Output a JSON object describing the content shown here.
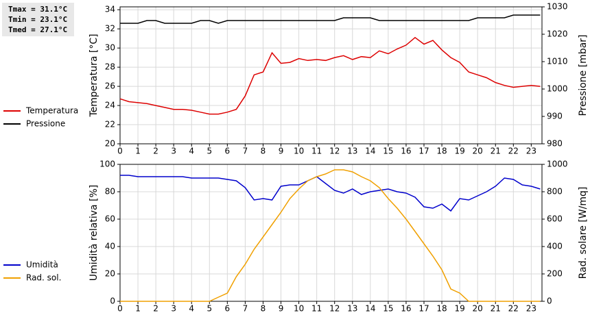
{
  "chart_data": [
    {
      "type": "line",
      "annotations": [
        "Tmax = 31.1°C",
        "Tmin = 23.1°C",
        "Tmed = 27.1°C"
      ],
      "ylabel": "Temperatura [°C]",
      "y2label": "Pressione [mbar]",
      "x": [
        0,
        0.5,
        1,
        1.5,
        2,
        2.5,
        3,
        3.5,
        4,
        4.5,
        5,
        5.5,
        6,
        6.5,
        7,
        7.5,
        8,
        8.5,
        9,
        9.5,
        10,
        10.5,
        11,
        11.5,
        12,
        12.5,
        13,
        13.5,
        14,
        14.5,
        15,
        15.5,
        16,
        16.5,
        17,
        17.5,
        18,
        18.5,
        19,
        19.5,
        20,
        20.5,
        21,
        21.5,
        22,
        22.5,
        23,
        23.5
      ],
      "xlim": [
        0,
        23.6
      ],
      "xticks": [
        0,
        1,
        2,
        3,
        4,
        5,
        6,
        7,
        8,
        9,
        10,
        11,
        12,
        13,
        14,
        15,
        16,
        17,
        18,
        19,
        20,
        21,
        22,
        23
      ],
      "ylim": [
        20,
        34.3
      ],
      "yticks": [
        20,
        22,
        24,
        26,
        28,
        30,
        32,
        34
      ],
      "y2lim": [
        980,
        1030
      ],
      "y2ticks": [
        980,
        990,
        1000,
        1010,
        1020,
        1030
      ],
      "grid": true,
      "legend": "left",
      "series": [
        {
          "name": "Temperatura",
          "color": "#dd0000",
          "values": [
            24.7,
            24.4,
            24.3,
            24.2,
            24.0,
            23.8,
            23.6,
            23.6,
            23.5,
            23.3,
            23.1,
            23.1,
            23.3,
            23.6,
            25.0,
            27.2,
            27.5,
            29.5,
            28.4,
            28.5,
            28.9,
            28.7,
            28.8,
            28.7,
            29.0,
            29.2,
            28.8,
            29.1,
            29.0,
            29.7,
            29.4,
            29.9,
            30.3,
            31.1,
            30.4,
            30.8,
            29.8,
            29.0,
            28.5,
            27.5,
            27.2,
            26.9,
            26.4,
            26.1,
            25.9,
            26.0,
            26.1,
            26.0
          ]
        },
        {
          "name": "Pressione",
          "color": "#000000",
          "axis": "y2",
          "values": [
            1024,
            1024,
            1024,
            1025,
            1025,
            1024,
            1024,
            1024,
            1024,
            1025,
            1025,
            1024,
            1025,
            1025,
            1025,
            1025,
            1025,
            1025,
            1025,
            1025,
            1025,
            1025,
            1025,
            1025,
            1025,
            1026,
            1026,
            1026,
            1026,
            1025,
            1025,
            1025,
            1025,
            1025,
            1025,
            1025,
            1025,
            1025,
            1025,
            1025,
            1026,
            1026,
            1026,
            1026,
            1027,
            1027,
            1027,
            1027
          ]
        }
      ]
    },
    {
      "type": "line",
      "ylabel": "Umidità relativa [%]",
      "y2label": "Rad. solare [W/mq]",
      "x": [
        0,
        0.5,
        1,
        1.5,
        2,
        2.5,
        3,
        3.5,
        4,
        4.5,
        5,
        5.5,
        6,
        6.5,
        7,
        7.5,
        8,
        8.5,
        9,
        9.5,
        10,
        10.5,
        11,
        11.5,
        12,
        12.5,
        13,
        13.5,
        14,
        14.5,
        15,
        15.5,
        16,
        16.5,
        17,
        17.5,
        18,
        18.5,
        19,
        19.5,
        20,
        20.5,
        21,
        21.5,
        22,
        22.5,
        23,
        23.5
      ],
      "xlim": [
        0,
        23.6
      ],
      "xticks": [
        0,
        1,
        2,
        3,
        4,
        5,
        6,
        7,
        8,
        9,
        10,
        11,
        12,
        13,
        14,
        15,
        16,
        17,
        18,
        19,
        20,
        21,
        22,
        23
      ],
      "ylim": [
        0,
        100
      ],
      "yticks": [
        0,
        20,
        40,
        60,
        80,
        100
      ],
      "y2lim": [
        0,
        1000
      ],
      "y2ticks": [
        0,
        200,
        400,
        600,
        800,
        1000
      ],
      "grid": true,
      "legend": "left",
      "series": [
        {
          "name": "Umidità",
          "color": "#0000cc",
          "values": [
            92,
            92,
            91,
            91,
            91,
            91,
            91,
            91,
            90,
            90,
            90,
            90,
            89,
            88,
            83,
            74,
            75,
            74,
            84,
            85,
            85,
            88,
            91,
            86,
            81,
            79,
            82,
            78,
            80,
            81,
            82,
            80,
            79,
            76,
            69,
            68,
            71,
            66,
            75,
            74,
            77,
            80,
            84,
            90,
            89,
            85,
            84,
            82
          ]
        },
        {
          "name": "Rad. sol.",
          "color": "#f0a000",
          "axis": "y2",
          "values": [
            0,
            0,
            0,
            0,
            0,
            0,
            0,
            0,
            0,
            0,
            0,
            30,
            60,
            180,
            270,
            380,
            470,
            560,
            650,
            750,
            820,
            880,
            910,
            930,
            960,
            960,
            945,
            910,
            880,
            830,
            750,
            680,
            600,
            510,
            420,
            330,
            230,
            90,
            60,
            0,
            0,
            0,
            0,
            0,
            0,
            0,
            0,
            0
          ]
        }
      ]
    }
  ]
}
